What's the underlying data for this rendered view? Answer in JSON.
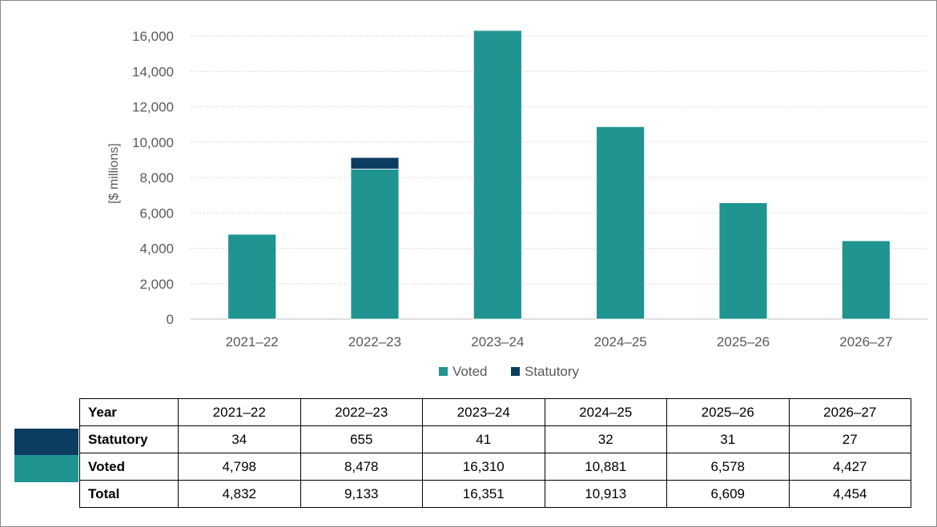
{
  "chart_data": {
    "type": "bar",
    "stacked": true,
    "categories": [
      "2021–22",
      "2022–23",
      "2023–24",
      "2024–25",
      "2025–26",
      "2026–27"
    ],
    "series": [
      {
        "name": "Voted",
        "color": "#1f9490",
        "values": [
          4798,
          8478,
          16310,
          10881,
          6578,
          4427
        ]
      },
      {
        "name": "Statutory",
        "color": "#0d3c61",
        "values": [
          34,
          655,
          41,
          32,
          31,
          27
        ]
      }
    ],
    "ylabel": "[$ millions]",
    "ylim": [
      0,
      16000
    ],
    "yticks": [
      0,
      2000,
      4000,
      6000,
      8000,
      10000,
      12000,
      14000,
      16000
    ],
    "ytick_labels": [
      "0",
      "2,000",
      "4,000",
      "6,000",
      "8,000",
      "10,000",
      "12,000",
      "14,000",
      "16,000"
    ],
    "grid": true,
    "legend_position": "bottom"
  },
  "table": {
    "header_label": "Year",
    "years": [
      "2021–22",
      "2022–23",
      "2023–24",
      "2024–25",
      "2025–26",
      "2026–27"
    ],
    "rows": [
      {
        "label": "Statutory",
        "swatch_color": "#0d3c61",
        "values": [
          "34",
          "655",
          "41",
          "32",
          "31",
          "27"
        ]
      },
      {
        "label": "Voted",
        "swatch_color": "#1f9490",
        "values": [
          "4,798",
          "8,478",
          "16,310",
          "10,881",
          "6,578",
          "4,427"
        ]
      },
      {
        "label": "Total",
        "values": [
          "4,832",
          "9,133",
          "16,351",
          "10,913",
          "6,609",
          "4,454"
        ]
      }
    ]
  }
}
